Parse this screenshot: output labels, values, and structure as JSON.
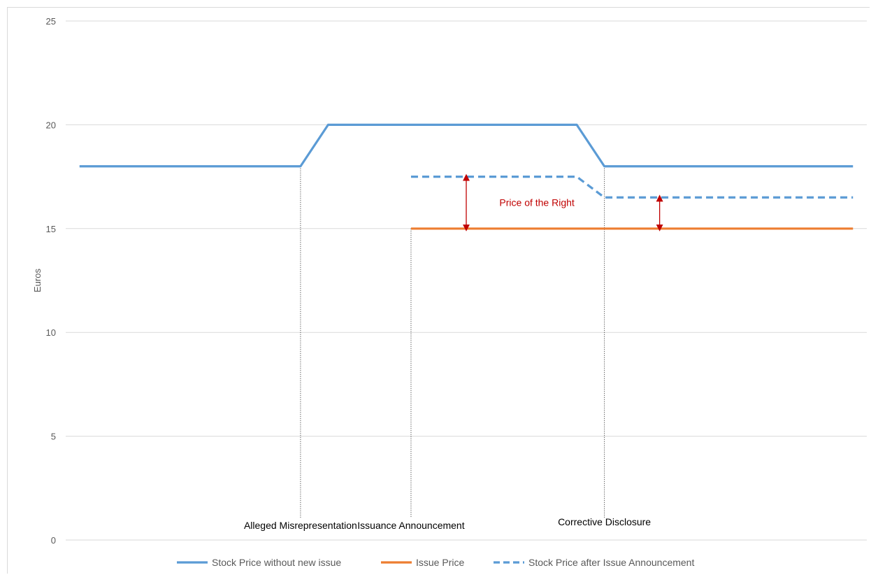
{
  "chart_data": {
    "type": "line",
    "title": "",
    "xlabel": "",
    "ylabel": "Euros",
    "ylim": [
      0,
      25
    ],
    "yticks": [
      0,
      5,
      10,
      15,
      20,
      25
    ],
    "xlim": [
      0,
      28
    ],
    "grid": true,
    "legend_position": "bottom",
    "series": [
      {
        "name": "Stock Price without new issue",
        "color": "#5b9bd5",
        "dash": "solid",
        "x": [
          0,
          8,
          9,
          18,
          19,
          28
        ],
        "y": [
          18,
          18,
          20,
          20,
          18,
          18
        ]
      },
      {
        "name": "Issue Price",
        "color": "#ed7d31",
        "dash": "solid",
        "x": [
          12,
          28
        ],
        "y": [
          15,
          15
        ]
      },
      {
        "name": "Stock Price after Issue Announcement",
        "color": "#5b9bd5",
        "dash": "dashed",
        "x": [
          12,
          18,
          19,
          28
        ],
        "y": [
          17.5,
          17.5,
          16.5,
          16.5
        ]
      }
    ],
    "events": [
      {
        "x": 8,
        "y_top": 18,
        "label": "Alleged Misrepresentation"
      },
      {
        "x": 12,
        "y_top": 15,
        "label": "Issuance Announcement"
      },
      {
        "x": 19,
        "y_top": 18,
        "label": "Corrective Disclosure"
      }
    ],
    "annotations": [
      {
        "text": "Price of the Right",
        "color": "#c00000"
      }
    ],
    "arrows": [
      {
        "x": 14,
        "from": 15,
        "to": 17.5,
        "color": "#c00000"
      },
      {
        "x": 21,
        "from": 15,
        "to": 16.5,
        "color": "#c00000"
      }
    ]
  }
}
